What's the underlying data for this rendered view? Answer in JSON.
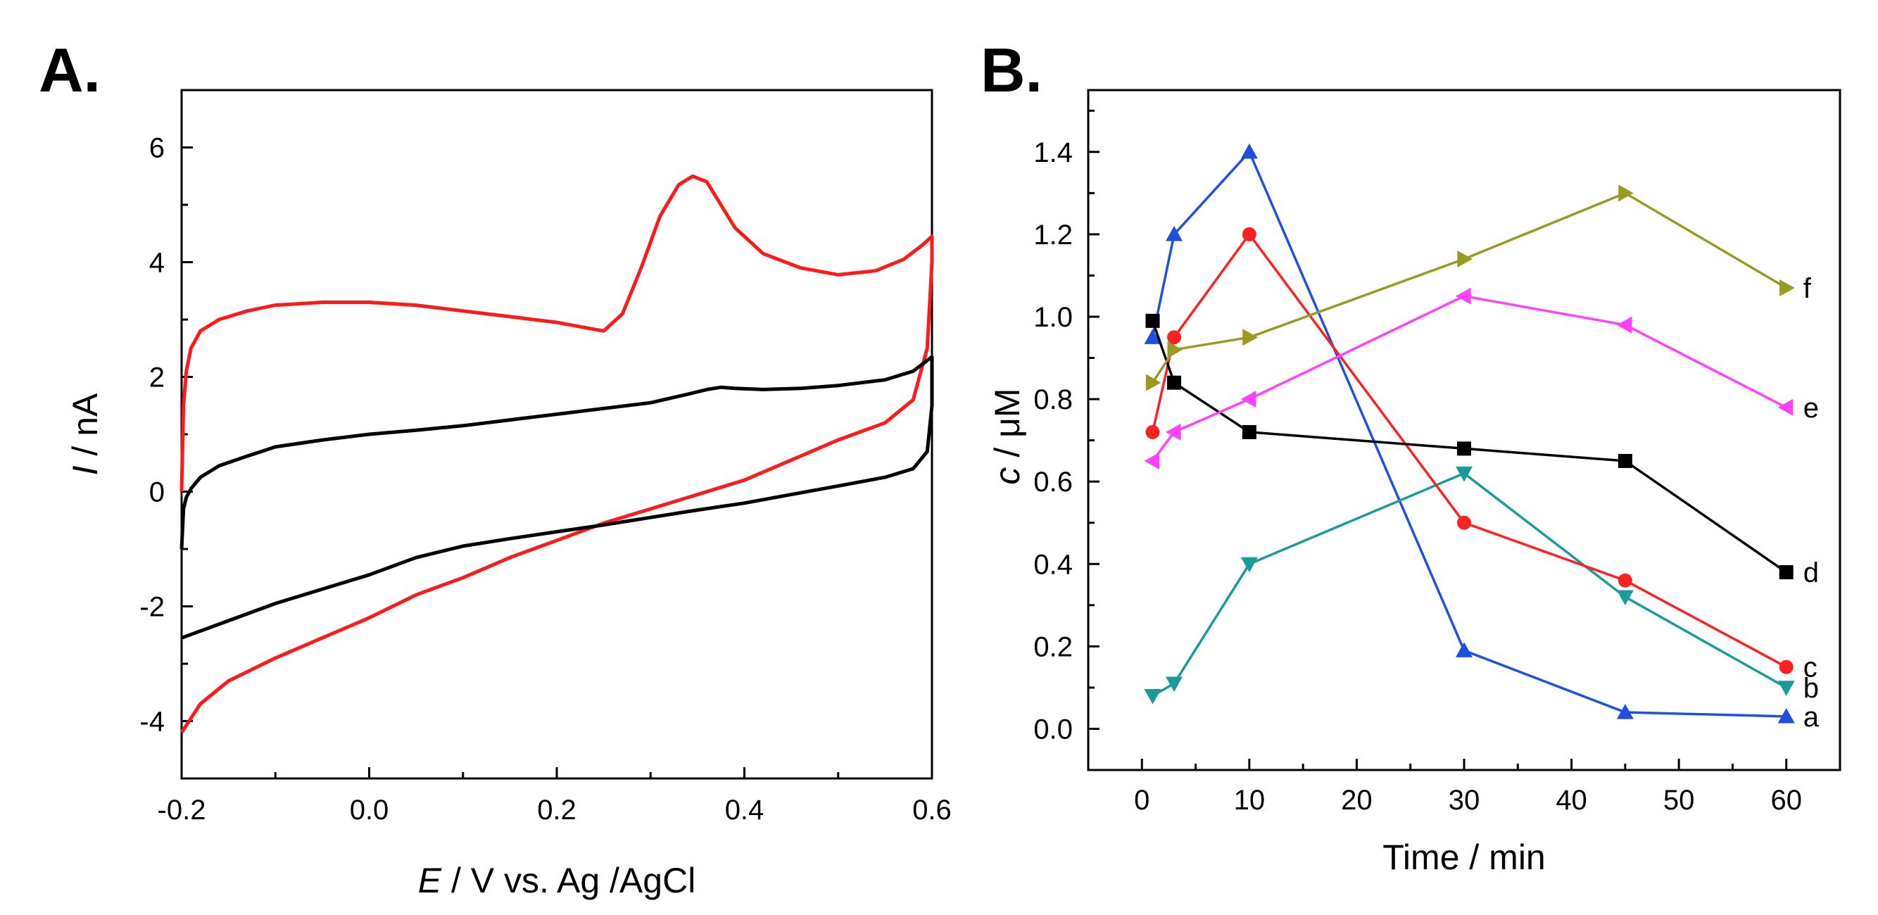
{
  "chart_data": [
    {
      "panel": "A.",
      "type": "line",
      "title": "",
      "xlabel_italic": "E",
      "xlabel": " / V vs. Ag /AgCl",
      "ylabel_italic": "I",
      "ylabel": " / nA",
      "xlim": [
        -0.2,
        0.6
      ],
      "ylim": [
        -5,
        7
      ],
      "xticks": [
        "-0.2",
        "0.0",
        "0.2",
        "0.4",
        "0.6"
      ],
      "xtick_values": [
        -0.2,
        0.0,
        0.2,
        0.4,
        0.6
      ],
      "yticks": [
        "-4",
        "-2",
        "0",
        "2",
        "4",
        "6"
      ],
      "ytick_values": [
        -4,
        -2,
        0,
        2,
        4,
        6
      ],
      "series": [
        {
          "name": "red CV",
          "color": "#ff1a1a",
          "x": [
            -0.2,
            -0.198,
            -0.195,
            -0.19,
            -0.18,
            -0.16,
            -0.13,
            -0.1,
            -0.05,
            0.0,
            0.05,
            0.1,
            0.15,
            0.2,
            0.25,
            0.27,
            0.29,
            0.31,
            0.33,
            0.345,
            0.36,
            0.375,
            0.39,
            0.42,
            0.46,
            0.5,
            0.54,
            0.57,
            0.59,
            0.6,
            0.6,
            0.595,
            0.58,
            0.55,
            0.5,
            0.45,
            0.4,
            0.35,
            0.3,
            0.25,
            0.2,
            0.15,
            0.1,
            0.05,
            0.0,
            -0.05,
            -0.1,
            -0.15,
            -0.18,
            -0.2
          ],
          "y": [
            0.0,
            1.5,
            2.1,
            2.5,
            2.8,
            3.0,
            3.15,
            3.25,
            3.3,
            3.3,
            3.25,
            3.15,
            3.05,
            2.95,
            2.8,
            3.1,
            3.9,
            4.8,
            5.35,
            5.5,
            5.4,
            5.0,
            4.6,
            4.15,
            3.9,
            3.78,
            3.85,
            4.05,
            4.3,
            4.45,
            4.0,
            2.5,
            1.6,
            1.2,
            0.9,
            0.55,
            0.2,
            -0.05,
            -0.3,
            -0.55,
            -0.85,
            -1.15,
            -1.5,
            -1.8,
            -2.2,
            -2.55,
            -2.9,
            -3.3,
            -3.7,
            -4.2
          ]
        },
        {
          "name": "black CV",
          "color": "#000000",
          "x": [
            -0.2,
            -0.198,
            -0.195,
            -0.19,
            -0.18,
            -0.16,
            -0.13,
            -0.1,
            -0.05,
            0.0,
            0.05,
            0.1,
            0.15,
            0.2,
            0.25,
            0.3,
            0.34,
            0.36,
            0.375,
            0.39,
            0.42,
            0.46,
            0.5,
            0.55,
            0.58,
            0.6,
            0.6,
            0.595,
            0.58,
            0.55,
            0.5,
            0.45,
            0.4,
            0.35,
            0.3,
            0.25,
            0.2,
            0.15,
            0.1,
            0.05,
            0.0,
            -0.05,
            -0.1,
            -0.15,
            -0.2
          ],
          "y": [
            -1.0,
            -0.3,
            -0.1,
            0.05,
            0.25,
            0.45,
            0.62,
            0.78,
            0.9,
            1.0,
            1.07,
            1.15,
            1.25,
            1.35,
            1.45,
            1.55,
            1.7,
            1.78,
            1.82,
            1.8,
            1.78,
            1.8,
            1.85,
            1.95,
            2.1,
            2.35,
            1.5,
            0.7,
            0.4,
            0.25,
            0.1,
            -0.05,
            -0.2,
            -0.32,
            -0.45,
            -0.58,
            -0.7,
            -0.82,
            -0.95,
            -1.15,
            -1.45,
            -1.7,
            -1.95,
            -2.25,
            -2.55
          ]
        }
      ]
    },
    {
      "panel": "B.",
      "type": "line",
      "title": "",
      "xlabel": "Time / min",
      "ylabel_italic": "c",
      "ylabel": " / μM",
      "xlim": [
        -5,
        65
      ],
      "ylim": [
        -0.1,
        1.55
      ],
      "xticks": [
        "0",
        "10",
        "20",
        "30",
        "40",
        "50",
        "60"
      ],
      "xtick_values": [
        0,
        10,
        20,
        30,
        40,
        50,
        60
      ],
      "yticks": [
        "0.0",
        "0.2",
        "0.4",
        "0.6",
        "0.8",
        "1.0",
        "1.2",
        "1.4"
      ],
      "ytick_values": [
        0.0,
        0.2,
        0.4,
        0.6,
        0.8,
        1.0,
        1.2,
        1.4
      ],
      "x": [
        1,
        3,
        10,
        30,
        45,
        60
      ],
      "series": [
        {
          "name": "a",
          "marker": "triangle-up",
          "color": "#1f4fe0",
          "values": [
            0.95,
            1.2,
            1.4,
            0.19,
            0.04,
            0.03
          ]
        },
        {
          "name": "b",
          "marker": "triangle-down",
          "color": "#1a9a9a",
          "values": [
            0.08,
            0.11,
            0.4,
            0.62,
            0.32,
            0.1
          ]
        },
        {
          "name": "c",
          "marker": "circle",
          "color": "#ff2020",
          "values": [
            0.72,
            0.95,
            1.2,
            0.5,
            0.36,
            0.15
          ]
        },
        {
          "name": "d",
          "marker": "square",
          "color": "#000000",
          "values": [
            0.99,
            0.84,
            0.72,
            0.68,
            0.65,
            0.38
          ]
        },
        {
          "name": "e",
          "marker": "triangle-left",
          "color": "#ff40ff",
          "values": [
            0.65,
            0.72,
            0.8,
            1.05,
            0.98,
            0.78
          ]
        },
        {
          "name": "f",
          "marker": "triangle-right",
          "color": "#9a9a20",
          "values": [
            0.84,
            0.92,
            0.95,
            1.14,
            1.3,
            1.07
          ]
        }
      ]
    }
  ]
}
